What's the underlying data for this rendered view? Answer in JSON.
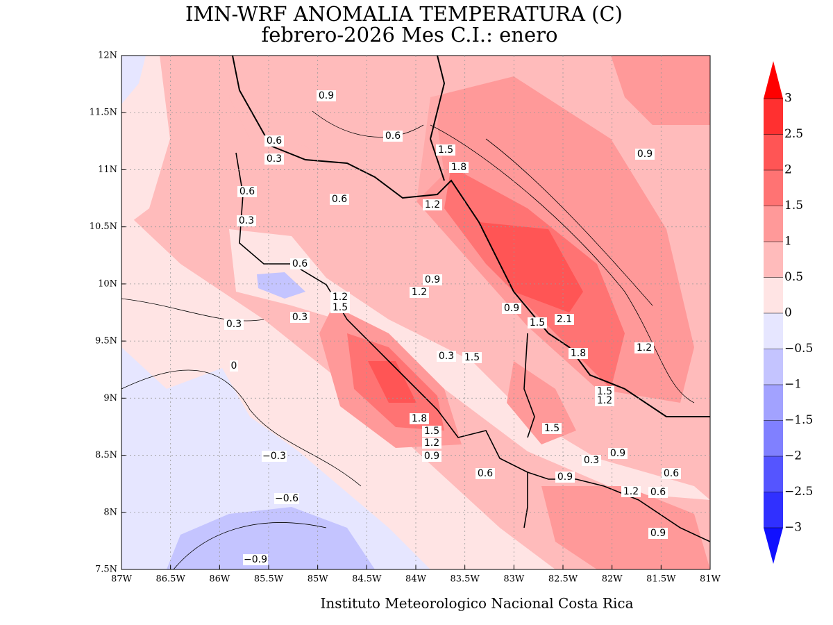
{
  "title": "IMN-WRF  ANOMALIA TEMPERATURA (C)",
  "subtitle": "febrero-2026 Mes C.I.: enero",
  "x_ticks": [
    "87W",
    "86.5W",
    "86W",
    "85.5W",
    "85W",
    "84.5W",
    "84W",
    "83.5W",
    "83W",
    "82.5W",
    "82W",
    "81.5W",
    "81W"
  ],
  "y_ticks": [
    "12N",
    "11.5N",
    "11N",
    "10.5N",
    "10N",
    "9.5N",
    "9N",
    "8.5N",
    "8N",
    "7.5N"
  ],
  "colorbar": {
    "labels": [
      "3",
      "2.5",
      "2",
      "1.5",
      "1",
      "0.5",
      "0",
      "−0.5",
      "−1",
      "−1.5",
      "−2",
      "−2.5",
      "−3"
    ],
    "colors": [
      "#ff0000",
      "#ff3030",
      "#ff5555",
      "#ff7373",
      "#ff9999",
      "#ffbbbb",
      "#ffe4e4",
      "#e6e6ff",
      "#c4c4ff",
      "#a2a2ff",
      "#8080ff",
      "#5555ff",
      "#3030ff",
      "#1010ff"
    ]
  },
  "contour_labels": [
    "0.9",
    "0.6",
    "0.3",
    "0.6",
    "1.5",
    "1.8",
    "1.2",
    "0.6",
    "0.6",
    "0.3",
    "0.9",
    "0.6",
    "0.9",
    "1.2",
    "1.2",
    "1.5",
    "0.3",
    "0.3",
    "0.9",
    "1.5",
    "2.1",
    "1.2",
    "1.8",
    "0.3",
    "1.5",
    "0",
    "1.5",
    "1.2",
    "1.8",
    "1.5",
    "1.2",
    "0.9",
    "1.5",
    "−0.3",
    "0.3",
    "0.9",
    "0.6",
    "0.9",
    "0.6",
    "−0.6",
    "1.2",
    "0.6",
    "0.9",
    "−0.9"
  ],
  "footer": "Instituto Meteorologico Nacional Costa Rica"
}
